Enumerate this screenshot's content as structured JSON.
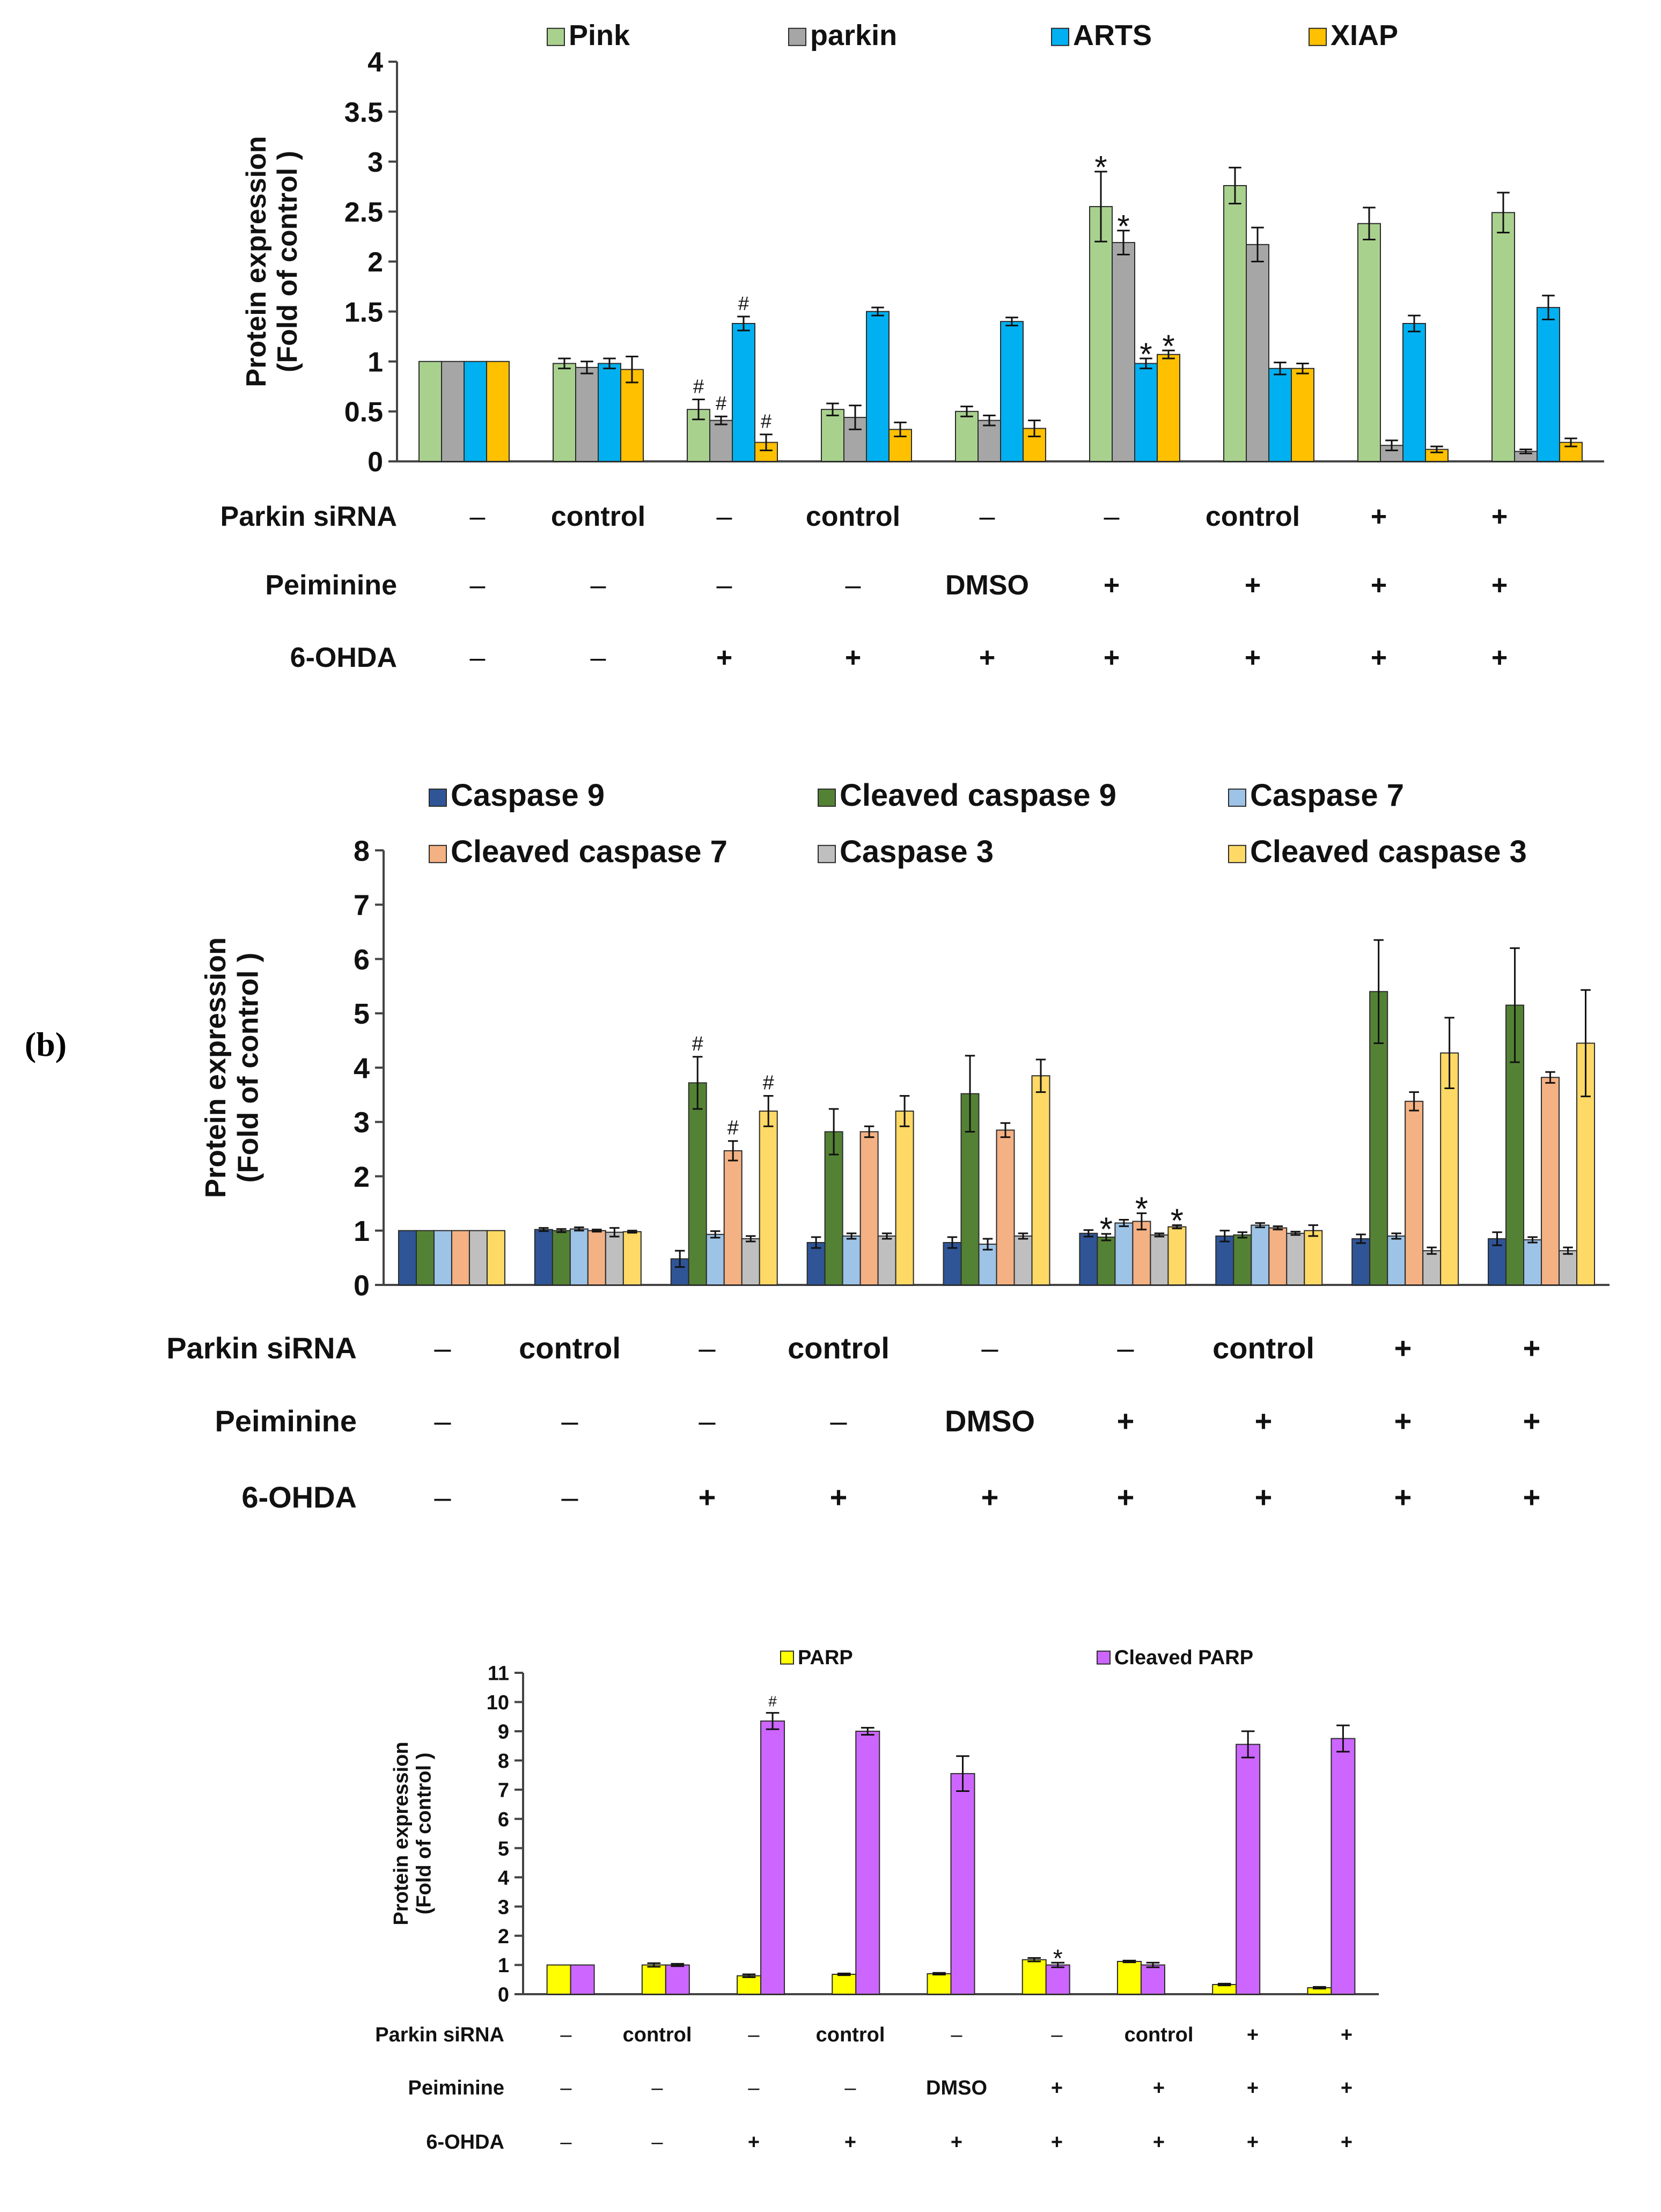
{
  "panel_label": "(b)",
  "condition_labels": [
    "Parkin siRNA",
    "Peiminine",
    "6-OHDA"
  ],
  "conditions": [
    [
      "–",
      "–",
      "–"
    ],
    [
      "control",
      "–",
      "–"
    ],
    [
      "–",
      "–",
      "+"
    ],
    [
      "control",
      "–",
      "+"
    ],
    [
      "–",
      "DMSO",
      "+"
    ],
    [
      "–",
      "+",
      "+"
    ],
    [
      "control",
      "+",
      "+"
    ],
    [
      "+",
      "+",
      "+"
    ],
    [
      "+",
      "+",
      "+"
    ]
  ],
  "chart_data": [
    {
      "type": "bar",
      "ylabel": "Protein expression (Fold of control )",
      "ylim": [
        0,
        4
      ],
      "yticks": [
        "0",
        "0.5",
        "1",
        "1.5",
        "2",
        "2.5",
        "3",
        "3.5",
        "4"
      ],
      "tick_values": [
        0,
        0.5,
        1,
        1.5,
        2,
        2.5,
        3,
        3.5,
        4
      ],
      "series": [
        {
          "name": "Pink",
          "color": "#a9d18e",
          "values": [
            1,
            0.98,
            0.52,
            0.52,
            0.5,
            2.55,
            2.76,
            2.38,
            2.49
          ],
          "errors": [
            0,
            0.05,
            0.1,
            0.06,
            0.05,
            0.35,
            0.18,
            0.16,
            0.2
          ],
          "marks": [
            "",
            "",
            "#",
            "",
            "",
            "*",
            "",
            "",
            ""
          ]
        },
        {
          "name": "parkin",
          "color": "#a6a6a6",
          "values": [
            1,
            0.94,
            0.41,
            0.44,
            0.41,
            2.19,
            2.17,
            0.16,
            0.1
          ],
          "errors": [
            0,
            0.06,
            0.04,
            0.12,
            0.05,
            0.12,
            0.17,
            0.05,
            0.02
          ],
          "marks": [
            "",
            "",
            "#",
            "",
            "",
            "*",
            "",
            "",
            ""
          ]
        },
        {
          "name": "ARTS",
          "color": "#00b0f0",
          "values": [
            1,
            0.98,
            1.38,
            1.5,
            1.4,
            0.98,
            0.93,
            1.38,
            1.54
          ],
          "errors": [
            0,
            0.05,
            0.07,
            0.04,
            0.04,
            0.05,
            0.06,
            0.08,
            0.12
          ],
          "marks": [
            "",
            "",
            "#",
            "",
            "",
            "*",
            "",
            "",
            ""
          ]
        },
        {
          "name": "XIAP",
          "color": "#ffc000",
          "values": [
            1,
            0.92,
            0.19,
            0.32,
            0.33,
            1.07,
            0.93,
            0.12,
            0.19
          ],
          "errors": [
            0,
            0.13,
            0.08,
            0.07,
            0.08,
            0.04,
            0.05,
            0.03,
            0.04
          ],
          "marks": [
            "",
            "",
            "#",
            "",
            "",
            "*",
            "",
            "",
            ""
          ]
        }
      ]
    },
    {
      "type": "bar",
      "ylabel": "Protein expression (Fold of control )",
      "ylim": [
        0,
        8
      ],
      "yticks": [
        "0",
        "1",
        "2",
        "3",
        "4",
        "5",
        "6",
        "7",
        "8"
      ],
      "tick_values": [
        0,
        1,
        2,
        3,
        4,
        5,
        6,
        7,
        8
      ],
      "series": [
        {
          "name": "Caspase 9",
          "color": "#2f5597",
          "values": [
            1,
            1.02,
            0.48,
            0.78,
            0.78,
            0.95,
            0.9,
            0.85,
            0.85
          ],
          "errors": [
            0,
            0.03,
            0.15,
            0.1,
            0.1,
            0.06,
            0.1,
            0.08,
            0.12
          ],
          "marks": [
            "",
            "",
            "",
            "",
            "",
            "",
            "",
            "",
            ""
          ]
        },
        {
          "name": "Cleaved caspase 9",
          "color": "#548235",
          "values": [
            1,
            1.0,
            3.72,
            2.82,
            3.52,
            0.88,
            0.92,
            5.4,
            5.15
          ],
          "errors": [
            0,
            0.03,
            0.48,
            0.42,
            0.7,
            0.06,
            0.05,
            0.95,
            1.05
          ],
          "marks": [
            "",
            "",
            "#",
            "",
            "",
            "*",
            "",
            "",
            ""
          ]
        },
        {
          "name": "Caspase 7",
          "color": "#9dc3e6",
          "values": [
            1,
            1.03,
            0.93,
            0.9,
            0.75,
            1.14,
            1.1,
            0.9,
            0.83
          ],
          "errors": [
            0,
            0.03,
            0.06,
            0.05,
            0.1,
            0.06,
            0.04,
            0.05,
            0.05
          ],
          "marks": [
            "",
            "",
            "",
            "",
            "",
            "",
            "",
            "",
            ""
          ]
        },
        {
          "name": "Cleaved caspase 7",
          "color": "#f4b183",
          "values": [
            1,
            1.0,
            2.47,
            2.82,
            2.85,
            1.17,
            1.05,
            3.38,
            3.82
          ],
          "errors": [
            0,
            0.02,
            0.18,
            0.1,
            0.13,
            0.15,
            0.03,
            0.17,
            0.1
          ],
          "marks": [
            "",
            "",
            "#",
            "",
            "",
            "*",
            "",
            "",
            ""
          ]
        },
        {
          "name": "Caspase 3",
          "color": "#bfbfbf",
          "values": [
            1,
            0.97,
            0.85,
            0.9,
            0.9,
            0.92,
            0.95,
            0.63,
            0.63
          ],
          "errors": [
            0,
            0.08,
            0.05,
            0.05,
            0.05,
            0.03,
            0.03,
            0.06,
            0.06
          ],
          "marks": [
            "",
            "",
            "",
            "",
            "",
            "",
            "",
            "",
            ""
          ]
        },
        {
          "name": "Cleaved caspase 3",
          "color": "#ffd966",
          "values": [
            1,
            0.98,
            3.2,
            3.2,
            3.85,
            1.07,
            1.0,
            4.27,
            4.45
          ],
          "errors": [
            0,
            0.02,
            0.28,
            0.28,
            0.3,
            0.03,
            0.1,
            0.65,
            0.98
          ],
          "marks": [
            "",
            "",
            "#",
            "",
            "",
            "*",
            "",
            "",
            ""
          ]
        }
      ]
    },
    {
      "type": "bar",
      "ylabel": "Protein expression (Fold of control )",
      "ylim": [
        0,
        11
      ],
      "yticks": [
        "0",
        "1",
        "2",
        "3",
        "4",
        "5",
        "6",
        "7",
        "8",
        "9",
        "10",
        "11"
      ],
      "tick_values": [
        0,
        1,
        2,
        3,
        4,
        5,
        6,
        7,
        8,
        9,
        10,
        11
      ],
      "series": [
        {
          "name": "PARP",
          "color": "#ffff00",
          "values": [
            1,
            1.0,
            0.63,
            0.68,
            0.7,
            1.18,
            1.12,
            0.33,
            0.22
          ],
          "errors": [
            0,
            0.06,
            0.05,
            0.03,
            0.03,
            0.06,
            0.03,
            0.03,
            0.03
          ],
          "marks": [
            "",
            "",
            "",
            "",
            "",
            "",
            "",
            "",
            ""
          ]
        },
        {
          "name": "Cleaved PARP",
          "color": "#cc66ff",
          "values": [
            1,
            1.0,
            9.35,
            9.0,
            7.55,
            1.0,
            1.0,
            8.55,
            8.75
          ],
          "errors": [
            0,
            0.04,
            0.28,
            0.12,
            0.6,
            0.08,
            0.08,
            0.45,
            0.45
          ],
          "marks": [
            "",
            "",
            "#",
            "",
            "",
            "*",
            "",
            "",
            ""
          ]
        }
      ]
    }
  ]
}
